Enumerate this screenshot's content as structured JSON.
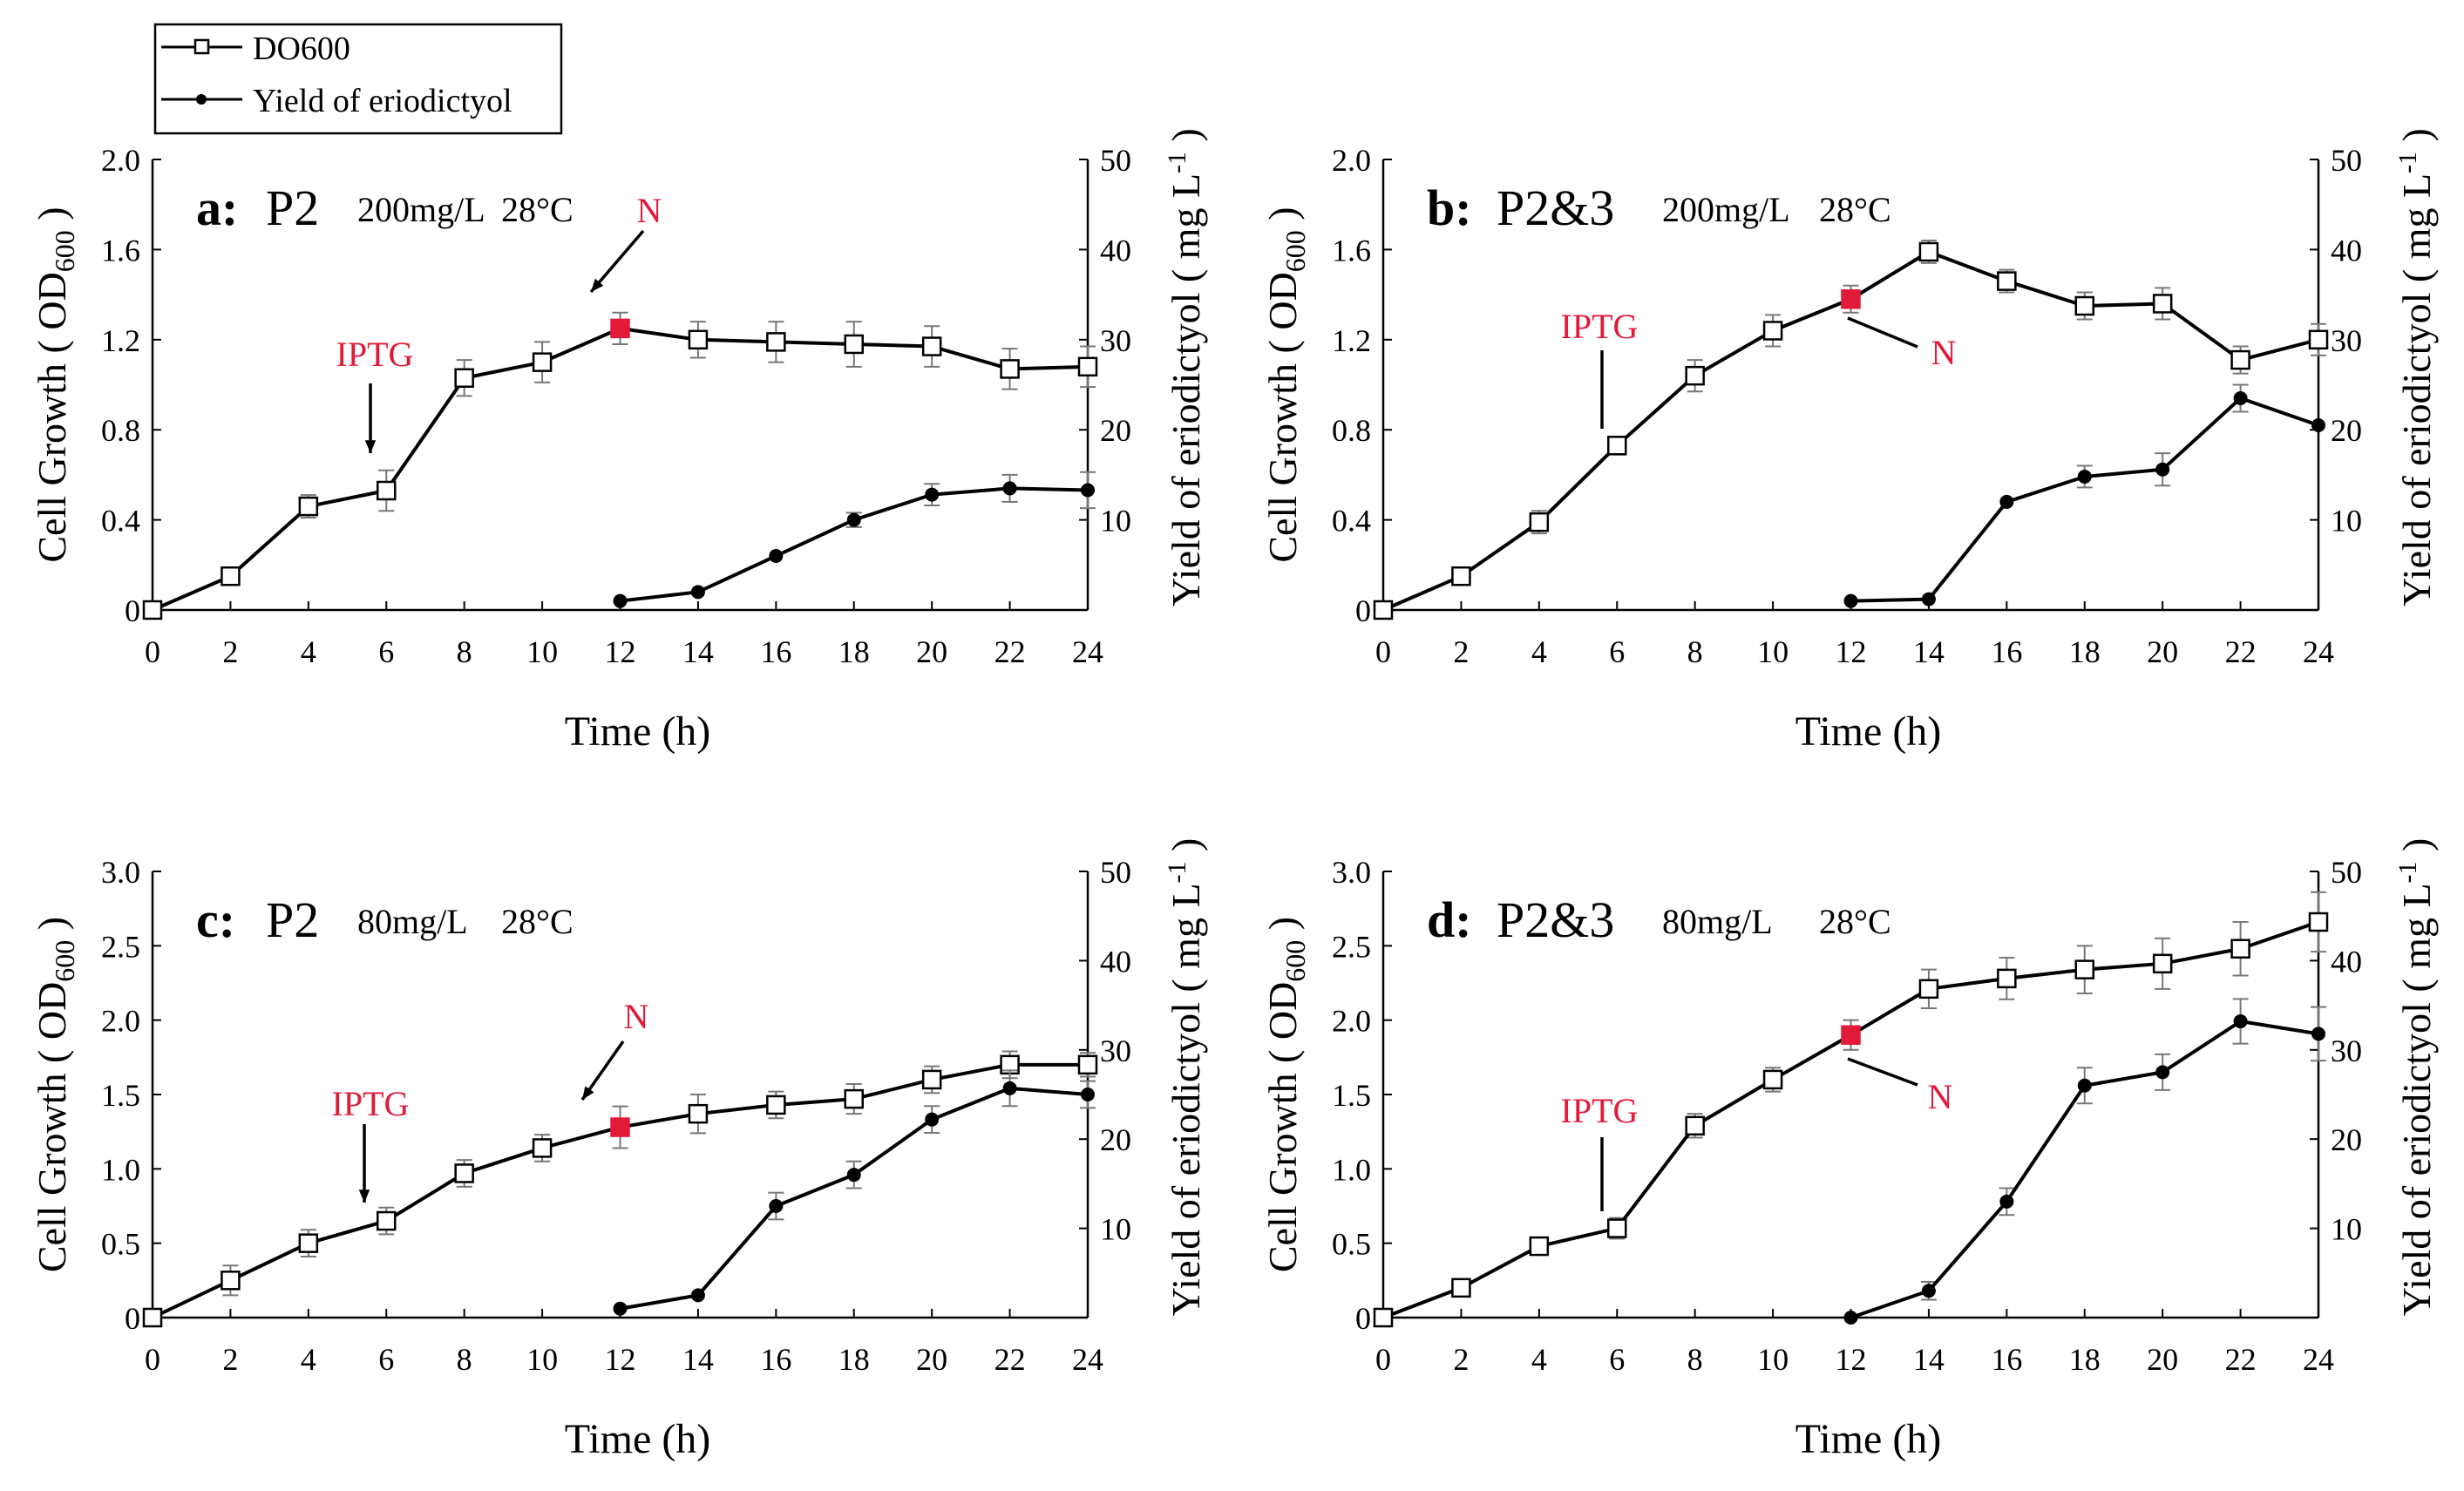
{
  "legend": {
    "od_label": "DO600",
    "yield_label": "Yield of eriodictyol"
  },
  "colors": {
    "line": "#000000",
    "highlight": "#e21a3a",
    "annotation": "#e21a3a"
  },
  "chart_data": [
    {
      "type": "line",
      "panel": "a",
      "title_letter": "a:",
      "title_strain": "P2",
      "conditions": [
        "200mg/L",
        "28°C"
      ],
      "xlabel": "Time (h)",
      "ylabel_left": "Cell Growth ( OD600 )",
      "ylabel_right": "Yield of eriodictyol ( mg L-1 )",
      "xlim": [
        0,
        24
      ],
      "ylim_left": [
        0,
        2.0
      ],
      "ylim_right": [
        0,
        50
      ],
      "xticks": [
        "0",
        "2",
        "4",
        "6",
        "8",
        "10",
        "12",
        "14",
        "16",
        "18",
        "20",
        "22",
        "24"
      ],
      "yticks_left": [
        "0",
        "0.4",
        "0.8",
        "1.2",
        "1.6",
        "2.0"
      ],
      "yticks_right": [
        "10",
        "20",
        "30",
        "40",
        "50"
      ],
      "annotations": [
        {
          "label": "IPTG",
          "x": 6
        },
        {
          "label": "N",
          "x": 12
        }
      ],
      "series": [
        {
          "name": "DO600",
          "axis": "left",
          "marker": "open-square",
          "x": [
            0,
            2,
            4,
            6,
            8,
            10,
            12,
            14,
            16,
            18,
            20,
            22,
            24
          ],
          "values": [
            0,
            0.15,
            0.46,
            0.53,
            1.03,
            1.1,
            1.25,
            1.2,
            1.19,
            1.18,
            1.17,
            1.07,
            1.08
          ],
          "errors": [
            0,
            0.02,
            0.05,
            0.09,
            0.08,
            0.09,
            0.07,
            0.08,
            0.09,
            0.1,
            0.09,
            0.09,
            0.09
          ],
          "highlight_x": 12
        },
        {
          "name": "Yield of eriodictyol",
          "axis": "right",
          "marker": "filled-circle",
          "x": [
            12,
            14,
            16,
            18,
            20,
            22,
            24
          ],
          "values": [
            1,
            2,
            6,
            10,
            12.8,
            13.5,
            13.3
          ],
          "errors": [
            0,
            0,
            0,
            0.8,
            1.2,
            1.5,
            2.0
          ]
        }
      ]
    },
    {
      "type": "line",
      "panel": "b",
      "title_letter": "b:",
      "title_strain": "P2&3",
      "conditions": [
        "200mg/L",
        "28°C"
      ],
      "xlabel": "Time (h)",
      "ylabel_left": "Cell Growth ( OD600 )",
      "ylabel_right": "Yield of eriodictyol ( mg L-1 )",
      "xlim": [
        0,
        24
      ],
      "ylim_left": [
        0,
        2.0
      ],
      "ylim_right": [
        0,
        50
      ],
      "xticks": [
        "0",
        "2",
        "4",
        "6",
        "8",
        "10",
        "12",
        "14",
        "16",
        "18",
        "20",
        "22",
        "24"
      ],
      "yticks_left": [
        "0",
        "0.4",
        "0.8",
        "1.2",
        "1.6",
        "2.0"
      ],
      "yticks_right": [
        "10",
        "20",
        "30",
        "40",
        "50"
      ],
      "annotations": [
        {
          "label": "IPTG",
          "x": 6
        },
        {
          "label": "N",
          "x": 12
        }
      ],
      "series": [
        {
          "name": "DO600",
          "axis": "left",
          "marker": "open-square",
          "x": [
            0,
            2,
            4,
            6,
            8,
            10,
            12,
            14,
            16,
            18,
            20,
            22,
            24
          ],
          "values": [
            0,
            0.15,
            0.39,
            0.73,
            1.04,
            1.24,
            1.38,
            1.59,
            1.46,
            1.35,
            1.36,
            1.11,
            1.2
          ],
          "errors": [
            0,
            0.03,
            0.05,
            0.04,
            0.07,
            0.07,
            0.06,
            0.05,
            0.05,
            0.06,
            0.07,
            0.06,
            0.07
          ],
          "highlight_x": 12
        },
        {
          "name": "Yield of eriodictyol",
          "axis": "right",
          "marker": "filled-circle",
          "x": [
            12,
            14,
            16,
            18,
            20,
            22,
            24
          ],
          "values": [
            1,
            1.2,
            12,
            14.8,
            15.6,
            23.5,
            20.5
          ],
          "errors": [
            0,
            0,
            0,
            1.2,
            1.8,
            1.5,
            0
          ]
        }
      ]
    },
    {
      "type": "line",
      "panel": "c",
      "title_letter": "c:",
      "title_strain": "P2",
      "conditions": [
        "80mg/L",
        "28°C"
      ],
      "xlabel": "Time (h)",
      "ylabel_left": "Cell Growth ( OD600 )",
      "ylabel_right": "Yield of eriodictyol ( mg L-1 )",
      "xlim": [
        0,
        24
      ],
      "ylim_left": [
        0,
        3.0
      ],
      "ylim_right": [
        0,
        50
      ],
      "xticks": [
        "0",
        "2",
        "4",
        "6",
        "8",
        "10",
        "12",
        "14",
        "16",
        "18",
        "20",
        "22",
        "24"
      ],
      "yticks_left": [
        "0",
        "0.5",
        "1.0",
        "1.5",
        "2.0",
        "2.5",
        "3.0"
      ],
      "yticks_right": [
        "10",
        "20",
        "30",
        "40",
        "50"
      ],
      "annotations": [
        {
          "label": "IPTG",
          "x": 6
        },
        {
          "label": "N",
          "x": 12
        }
      ],
      "series": [
        {
          "name": "DO600",
          "axis": "left",
          "marker": "open-square",
          "x": [
            0,
            2,
            4,
            6,
            8,
            10,
            12,
            14,
            16,
            18,
            20,
            22,
            24
          ],
          "values": [
            0,
            0.25,
            0.5,
            0.65,
            0.97,
            1.14,
            1.28,
            1.37,
            1.43,
            1.47,
            1.6,
            1.7,
            1.7
          ],
          "errors": [
            0,
            0.1,
            0.09,
            0.09,
            0.09,
            0.09,
            0.14,
            0.13,
            0.09,
            0.1,
            0.09,
            0.09,
            0.08
          ],
          "highlight_x": 12
        },
        {
          "name": "Yield of eriodictyol",
          "axis": "right",
          "marker": "filled-circle",
          "x": [
            12,
            14,
            16,
            18,
            20,
            22,
            24
          ],
          "values": [
            1,
            2.5,
            12.5,
            16,
            22.2,
            25.7,
            25
          ],
          "errors": [
            0,
            0,
            1.5,
            1.5,
            1.5,
            2,
            1.5
          ]
        }
      ]
    },
    {
      "type": "line",
      "panel": "d",
      "title_letter": "d:",
      "title_strain": "P2&3",
      "conditions": [
        "80mg/L",
        "28°C"
      ],
      "xlabel": "Time (h)",
      "ylabel_left": "Cell Growth ( OD600 )",
      "ylabel_right": "Yield of eriodictyol ( mg L-1 )",
      "xlim": [
        0,
        24
      ],
      "ylim_left": [
        0,
        3.0
      ],
      "ylim_right": [
        0,
        50
      ],
      "xticks": [
        "0",
        "2",
        "4",
        "6",
        "8",
        "10",
        "12",
        "14",
        "16",
        "18",
        "20",
        "22",
        "24"
      ],
      "yticks_left": [
        "0",
        "0.5",
        "1.0",
        "1.5",
        "2.0",
        "2.5",
        "3.0"
      ],
      "yticks_right": [
        "10",
        "20",
        "30",
        "40",
        "50"
      ],
      "annotations": [
        {
          "label": "IPTG",
          "x": 6
        },
        {
          "label": "N",
          "x": 12
        }
      ],
      "series": [
        {
          "name": "DO600",
          "axis": "left",
          "marker": "open-square",
          "x": [
            0,
            2,
            4,
            6,
            8,
            10,
            12,
            14,
            16,
            18,
            20,
            22,
            24
          ],
          "values": [
            0,
            0.2,
            0.48,
            0.6,
            1.29,
            1.6,
            1.9,
            2.21,
            2.28,
            2.34,
            2.38,
            2.48,
            2.66
          ],
          "errors": [
            0,
            0.04,
            0.04,
            0.07,
            0.08,
            0.08,
            0.1,
            0.13,
            0.14,
            0.16,
            0.17,
            0.18,
            0.2
          ],
          "highlight_x": 12
        },
        {
          "name": "Yield of eriodictyol",
          "axis": "right",
          "marker": "filled-circle",
          "x": [
            12,
            14,
            16,
            18,
            20,
            22,
            24
          ],
          "values": [
            0,
            3,
            13,
            26,
            27.5,
            33.2,
            31.8
          ],
          "errors": [
            0,
            1,
            1.5,
            2,
            2,
            2.5,
            3
          ]
        }
      ]
    }
  ]
}
